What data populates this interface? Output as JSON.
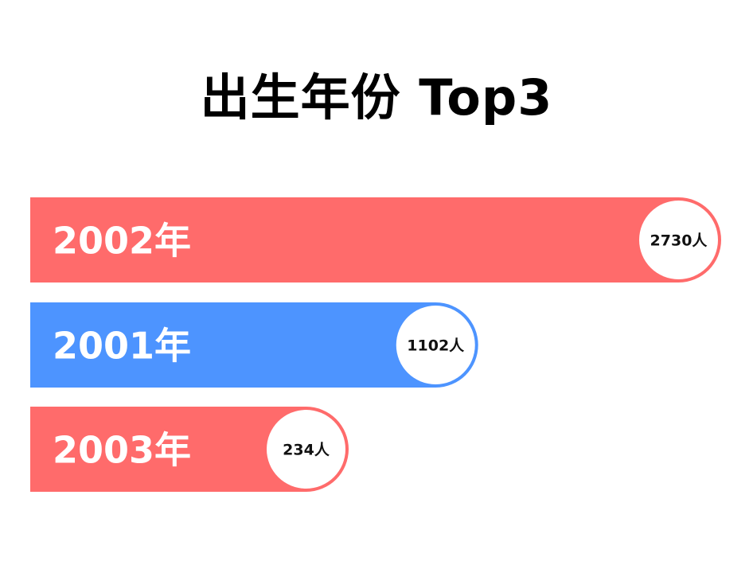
{
  "chart_data": {
    "type": "bar",
    "orientation": "horizontal",
    "title": "出生年份 Top3",
    "categories": [
      "2002年",
      "2001年",
      "2003年"
    ],
    "values": [
      2730,
      1102,
      234
    ],
    "value_labels": [
      "2730人",
      "1102人",
      "234人"
    ],
    "colors": [
      "#ff6b6b",
      "#4d94ff",
      "#ff6b6b"
    ],
    "grid": false
  }
}
